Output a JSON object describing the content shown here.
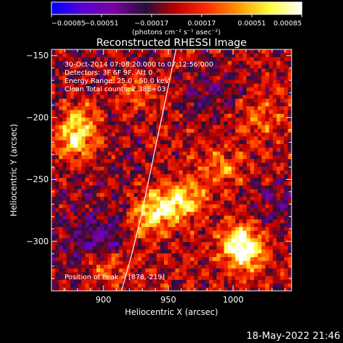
{
  "chart_data": {
    "type": "heatmap",
    "title": "Reconstructed RHESSI Image",
    "xlabel": "Heliocentric X (arcsec)",
    "ylabel": "Heliocentric Y (arcsec)",
    "xlim": [
      860,
      1045
    ],
    "ylim": [
      -340,
      -145
    ],
    "x_ticks": [
      900,
      950,
      1000
    ],
    "x_tick_labels": [
      "900",
      "950",
      "1000"
    ],
    "y_ticks": [
      -300,
      -250,
      -200,
      -150
    ],
    "y_tick_labels": [
      "−300",
      "−250",
      "−200",
      "−150"
    ],
    "colorbar": {
      "range": [
        -0.00085,
        0.00085
      ],
      "tick_values": [
        -0.00085,
        -0.00051,
        -0.00017,
        0.00017,
        0.00051,
        0.00085
      ],
      "tick_labels": [
        "−0.00085",
        "−0.00051",
        "−0.00017",
        "0.00017",
        "0.00051",
        "0.00085"
      ],
      "unit_label": "(photons cm⁻² s⁻¹ asec⁻²)",
      "colors": [
        "#0000ff",
        "#5a00d6",
        "#7d00a0",
        "#260f3c",
        "#c00000",
        "#ff3000",
        "#ff9a00",
        "#ffff40",
        "#ffffff"
      ]
    },
    "info_lines": [
      "30-Oct-2014 07:08:20.000 to 07:12:56.000",
      "Detectors: 3F 6F 9F, Att 0",
      "Energy Range: 25.0 - 50.0 keV",
      "Clean    Total counts: 2.38E+03"
    ],
    "peak_text": "Position of Peak = [878,-219]",
    "peak": [
      878,
      -219
    ],
    "limb": [
      [
        914,
        -340
      ],
      [
        922,
        -310
      ],
      [
        929,
        -280
      ],
      [
        935,
        -250
      ],
      [
        941,
        -220
      ],
      [
        947,
        -190
      ],
      [
        953,
        -160
      ],
      [
        956,
        -145
      ]
    ],
    "bright_spots": [
      {
        "x": 878,
        "y": -219,
        "strength": 1.0
      },
      {
        "x": 882,
        "y": -200,
        "strength": 0.7
      },
      {
        "x": 935,
        "y": -280,
        "strength": 0.8
      },
      {
        "x": 950,
        "y": -270,
        "strength": 0.75
      },
      {
        "x": 965,
        "y": -265,
        "strength": 0.7
      },
      {
        "x": 1005,
        "y": -300,
        "strength": 0.95
      },
      {
        "x": 1010,
        "y": -310,
        "strength": 0.85
      },
      {
        "x": 900,
        "y": -320,
        "strength": 0.7
      },
      {
        "x": 990,
        "y": -240,
        "strength": 0.55
      },
      {
        "x": 925,
        "y": -180,
        "strength": 0.55
      },
      {
        "x": 1020,
        "y": -200,
        "strength": 0.5
      }
    ],
    "negative_zones": [
      {
        "x": 895,
        "y": -300,
        "strength": 0.8
      },
      {
        "x": 980,
        "y": -180,
        "strength": 0.6
      },
      {
        "x": 1035,
        "y": -270,
        "strength": 0.6
      }
    ]
  },
  "footer_date": "18-May-2022 21:46"
}
